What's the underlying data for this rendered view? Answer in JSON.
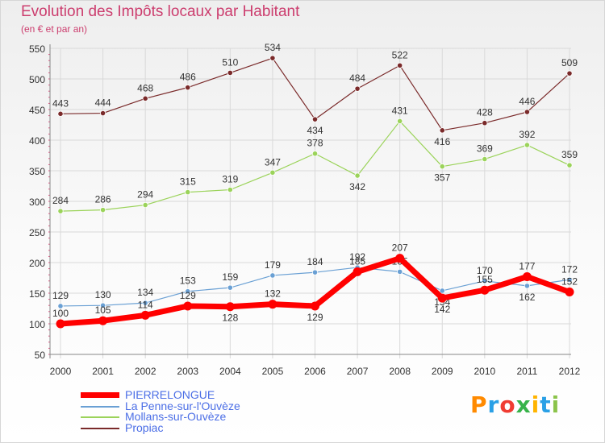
{
  "header": {
    "title": "Evolution des Impôts locaux par Habitant",
    "subtitle": "(en € et par an)"
  },
  "logo": {
    "text": "Proxiti",
    "colors": [
      "#ff8a00",
      "#2aa0e6",
      "#f03c32",
      "#37b34a",
      "#ffb400",
      "#2aa0e6",
      "#8bc34a"
    ]
  },
  "chart_data": {
    "type": "line",
    "title": "Evolution des Impôts locaux par Habitant",
    "subtitle": "(en € et par an)",
    "xlabel": "",
    "ylabel": "",
    "categories": [
      "2000",
      "2001",
      "2002",
      "2003",
      "2004",
      "2005",
      "2006",
      "2007",
      "2008",
      "2009",
      "2010",
      "2011",
      "2012"
    ],
    "ylim": [
      50,
      550
    ],
    "yticks": [
      50,
      100,
      150,
      200,
      250,
      300,
      350,
      400,
      450,
      500,
      550
    ],
    "grid": true,
    "legend": "bottom-left",
    "series": [
      {
        "name": "PIERRELONGUE",
        "color": "#ff0000",
        "values": [
          100,
          105,
          114,
          129,
          128,
          132,
          129,
          185,
          207,
          142,
          155,
          177,
          152
        ]
      },
      {
        "name": "La Penne-sur-l'Ouvèze",
        "color": "#6aa0d4",
        "values": [
          129,
          130,
          134,
          153,
          159,
          179,
          184,
          192,
          185,
          154,
          170,
          162,
          172
        ]
      },
      {
        "name": "Mollans-sur-Ouvèze",
        "color": "#9bd35a",
        "values": [
          284,
          286,
          294,
          315,
          319,
          347,
          378,
          342,
          431,
          357,
          369,
          392,
          359
        ]
      },
      {
        "name": "Propiac",
        "color": "#7a2a2a",
        "values": [
          443,
          444,
          468,
          486,
          510,
          534,
          434,
          484,
          522,
          416,
          428,
          446,
          509
        ]
      }
    ]
  }
}
